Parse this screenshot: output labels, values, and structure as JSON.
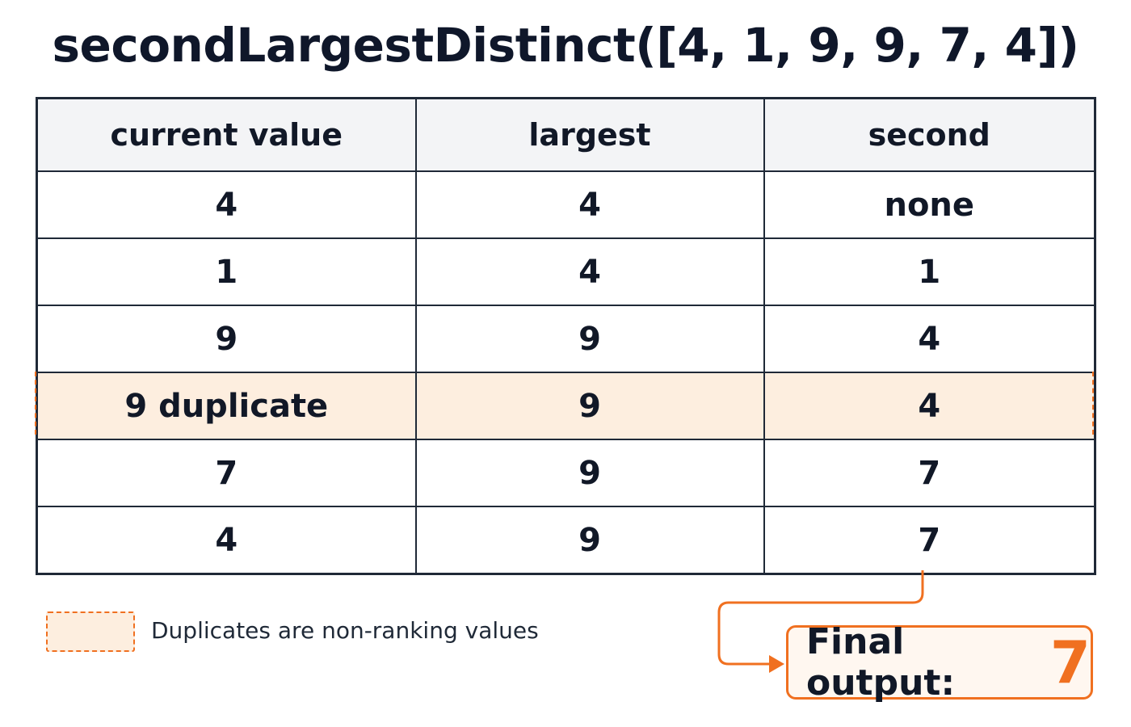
{
  "title": "secondLargestDistinct([4, 1, 9, 9, 7, 4])",
  "table": {
    "headers": [
      "current value",
      "largest",
      "second"
    ],
    "rows": [
      [
        "4",
        "4",
        "none"
      ],
      [
        "1",
        "4",
        "1"
      ],
      [
        "9",
        "9",
        "4"
      ],
      [
        "9 duplicate",
        "9",
        "4"
      ],
      [
        "7",
        "9",
        "7"
      ],
      [
        "4",
        "9",
        "7"
      ]
    ],
    "highlighted_row": 3,
    "final_row": 5
  },
  "legend": {
    "text": "Duplicates are non-ranking values"
  },
  "output": {
    "label": "Final output:",
    "value": "7"
  },
  "colors": {
    "accent": "#f07020",
    "duplicate_fill": "#fdeedf",
    "header_fill": "#f3f4f6",
    "border": "#1f2937",
    "text": "#111827"
  }
}
